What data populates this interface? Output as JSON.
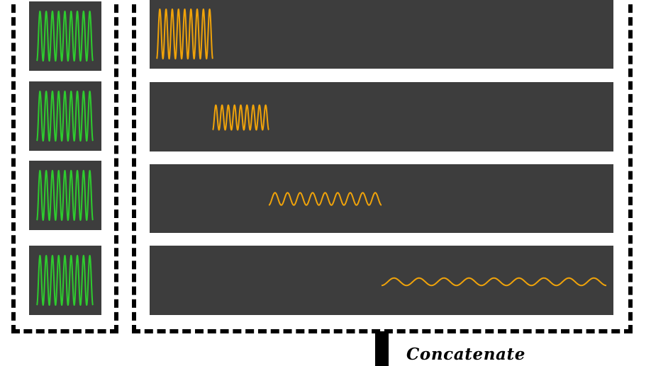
{
  "colors": {
    "panel_bg": "#3d3d3d",
    "input_wave": "#2ecc2e",
    "output_wave": "#f0a30a",
    "border": "#000000"
  },
  "input_signals": [
    {
      "cycles": 9
    },
    {
      "cycles": 9
    },
    {
      "cycles": 9
    },
    {
      "cycles": 9
    }
  ],
  "output_signals": [
    {
      "cycles": 9,
      "amplitude": 1.0
    },
    {
      "cycles": 9,
      "amplitude": 0.5
    },
    {
      "cycles": 9,
      "amplitude": 0.25
    },
    {
      "cycles": 9,
      "amplitude": 0.15
    }
  ],
  "concat_label": "Concatenate"
}
